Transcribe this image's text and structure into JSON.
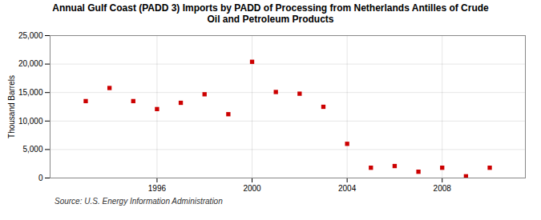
{
  "chart_data": {
    "type": "scatter",
    "title": "Annual Gulf Coast (PADD 3) Imports by PADD of Processing from Netherlands Antilles of Crude\nOil and Petroleum Products",
    "ylabel": "Thousand Barrels",
    "source": "Source: U.S. Energy Information Administration",
    "x": [
      1993,
      1994,
      1995,
      1996,
      1997,
      1998,
      1999,
      2000,
      2001,
      2002,
      2003,
      2004,
      2005,
      2006,
      2007,
      2008,
      2009,
      2010
    ],
    "values": [
      13500,
      15800,
      13500,
      12100,
      13200,
      14700,
      11200,
      20400,
      15100,
      14800,
      12500,
      6000,
      1800,
      2100,
      1100,
      1800,
      300,
      1800
    ],
    "color": "#cc0000",
    "marker": "square",
    "xlim": [
      1991.5,
      2011.5
    ],
    "xticks": [
      1996,
      2000,
      2004,
      2008
    ],
    "ylim": [
      0,
      25000
    ],
    "yticks": [
      0,
      {
        "value": 5000,
        "label": "5,000"
      },
      {
        "value": 10000,
        "label": "10,000"
      },
      {
        "value": 15000,
        "label": "15,000"
      },
      {
        "value": 20000,
        "label": "20,000"
      },
      {
        "value": 25000,
        "label": "25,000"
      }
    ],
    "grid": true
  }
}
